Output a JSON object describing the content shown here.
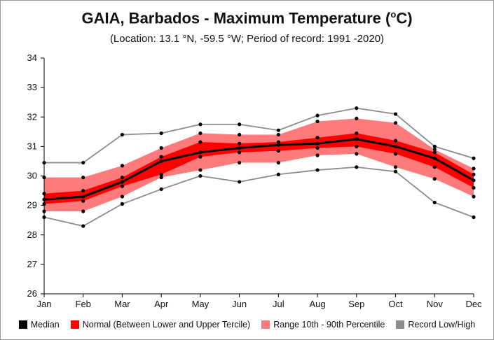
{
  "chart_data": {
    "type": "line",
    "title_main": "GAIA, Barbados - Maximum Temperature (",
    "title_unit_sup": "o",
    "title_unit_end": "C)",
    "subtitle": "(Location: 13.1 °N, -59.5 °W; Period of record: 1991 -2020)",
    "categories": [
      "Jan",
      "Feb",
      "Mar",
      "Apr",
      "May",
      "Jun",
      "Jul",
      "Aug",
      "Sep",
      "Oct",
      "Nov",
      "Dec"
    ],
    "ylim": [
      26,
      34
    ],
    "yticks": [
      26,
      27,
      28,
      29,
      30,
      31,
      32,
      33,
      34
    ],
    "grid": false,
    "legend_placement": "bottom",
    "series": {
      "median": [
        29.2,
        29.3,
        29.8,
        30.5,
        30.8,
        30.95,
        31.05,
        31.1,
        31.25,
        31.0,
        30.6,
        29.85
      ],
      "lower_tercile": [
        29.05,
        29.15,
        29.65,
        30.05,
        30.65,
        30.8,
        30.85,
        30.95,
        31.0,
        30.75,
        30.3,
        29.6
      ],
      "upper_tercile": [
        29.4,
        29.5,
        29.95,
        30.65,
        31.15,
        31.1,
        31.15,
        31.3,
        31.45,
        31.2,
        30.8,
        30.05
      ],
      "p10": [
        28.8,
        28.8,
        29.3,
        29.95,
        30.2,
        30.45,
        30.45,
        30.7,
        30.75,
        30.3,
        29.9,
        29.3
      ],
      "p90": [
        29.95,
        29.95,
        30.35,
        30.95,
        31.45,
        31.4,
        31.4,
        31.85,
        31.95,
        31.8,
        30.9,
        30.25
      ],
      "record_low": [
        28.6,
        28.3,
        29.05,
        29.55,
        30.0,
        29.8,
        30.05,
        30.2,
        30.3,
        30.15,
        29.1,
        28.6
      ],
      "record_high": [
        30.45,
        30.45,
        31.4,
        31.45,
        31.75,
        31.75,
        31.55,
        32.05,
        32.3,
        32.1,
        31.0,
        30.6
      ]
    },
    "legend": [
      {
        "label": "Median",
        "color": "#000000"
      },
      {
        "label": "Normal (Between Lower and Upper Tercile)",
        "color": "#ff0000"
      },
      {
        "label": "Range 10th - 90th Percentile",
        "color": "#ff7a7a"
      },
      {
        "label": "Record Low/High",
        "color": "#8c8c8c"
      }
    ],
    "colors": {
      "median": "#000000",
      "tercile_band": "#ff0000",
      "percentile_band": "#ff7a7a",
      "record": "#8c8c8c",
      "axis": "#000000"
    }
  }
}
